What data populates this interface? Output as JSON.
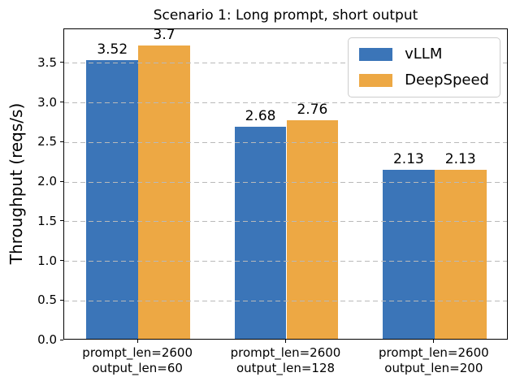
{
  "chart_data": {
    "type": "bar",
    "title": "Scenario 1: Long prompt, short output",
    "ylabel": "Throughput (reqs/s)",
    "xlabel": "",
    "categories": [
      {
        "line1": "prompt_len=2600",
        "line2": "output_len=60"
      },
      {
        "line1": "prompt_len=2600",
        "line2": "output_len=128"
      },
      {
        "line1": "prompt_len=2600",
        "line2": "output_len=200"
      }
    ],
    "series": [
      {
        "name": "vLLM",
        "color": "#3b75b8",
        "values": [
          3.52,
          2.68,
          2.13
        ],
        "value_labels": [
          "3.52",
          "2.68",
          "2.13"
        ]
      },
      {
        "name": "DeepSpeed",
        "color": "#eda844",
        "values": [
          3.7,
          2.76,
          2.13
        ],
        "value_labels": [
          "3.7",
          "2.76",
          "2.13"
        ]
      }
    ],
    "yticks": [
      "0.0",
      "0.5",
      "1.0",
      "1.5",
      "2.0",
      "2.5",
      "3.0",
      "3.5"
    ],
    "ylim": [
      0,
      3.93
    ],
    "bar_width_fraction": 0.35,
    "grid": true,
    "grid_axis": "y",
    "grid_style": "dashed",
    "grid_color": "#b9b9b9",
    "legend_position": "upper right"
  }
}
